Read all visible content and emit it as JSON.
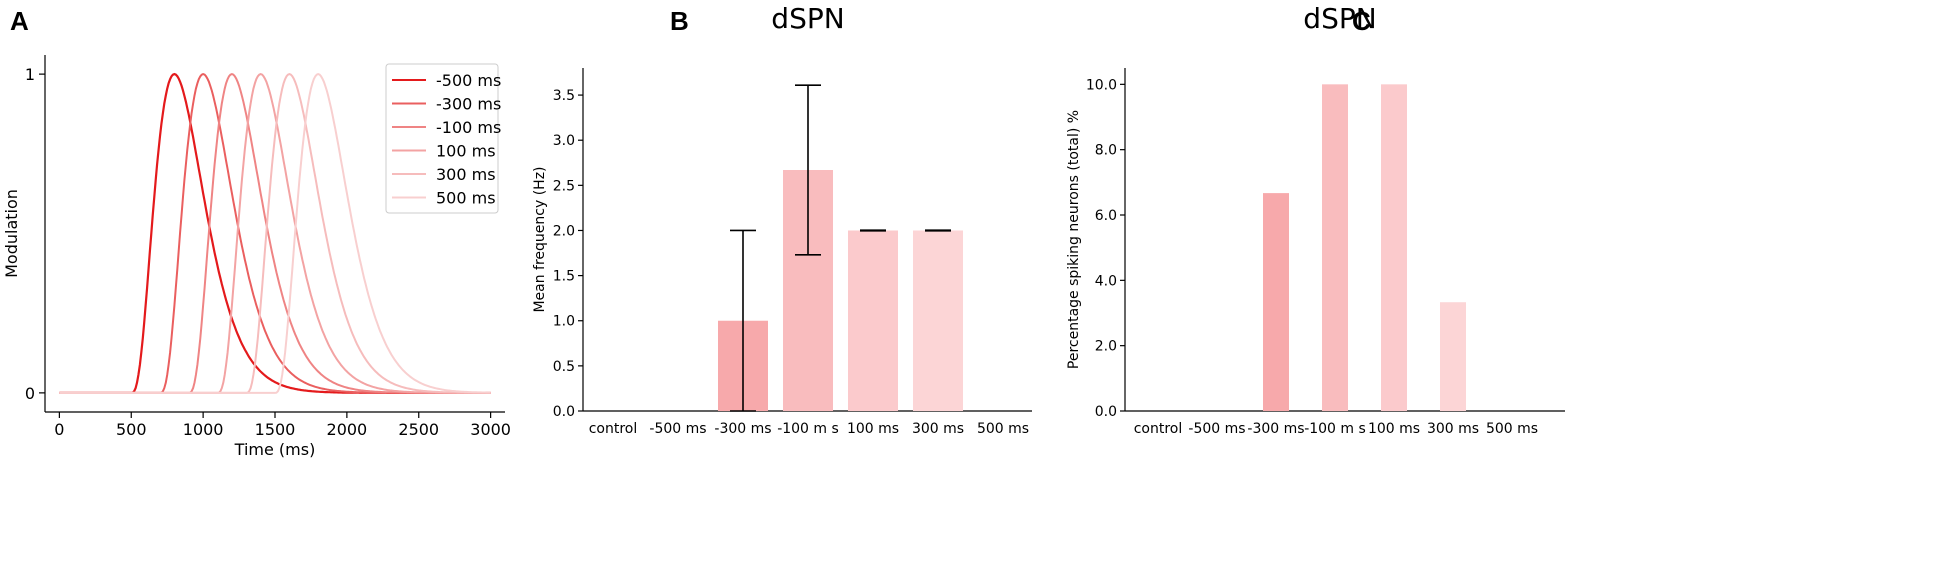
{
  "chart_data": [
    {
      "panel": "A",
      "type": "line",
      "title": "",
      "xlabel": "Time (ms)",
      "ylabel": "Modulation",
      "xlim": [
        -100,
        3100
      ],
      "ylim": [
        -0.06,
        1.06
      ],
      "xticks": [
        0,
        500,
        1000,
        1500,
        2000,
        2500,
        3000
      ],
      "xtick_labels": [
        "0",
        "500",
        "1000",
        "1500",
        "2000",
        "2500",
        "3000"
      ],
      "yticks": [
        0,
        1
      ],
      "ytick_labels": [
        "0",
        "1"
      ],
      "legend_position": "top-right",
      "grid": false,
      "series": [
        {
          "name": "-500 ms",
          "onset": 500,
          "peak_time": 800,
          "color": "#e41a1c"
        },
        {
          "name": "-300 ms",
          "onset": 700,
          "peak_time": 1000,
          "color": "#ea5f5f"
        },
        {
          "name": "-100 ms",
          "onset": 900,
          "peak_time": 1200,
          "color": "#ef8484"
        },
        {
          "name": "100 ms",
          "onset": 1100,
          "peak_time": 1400,
          "color": "#f3a3a3"
        },
        {
          "name": "300 ms",
          "onset": 1300,
          "peak_time": 1600,
          "color": "#f6bcbc"
        },
        {
          "name": "500 ms",
          "onset": 1500,
          "peak_time": 1800,
          "color": "#f8cfcf"
        }
      ]
    },
    {
      "panel": "B",
      "type": "bar",
      "title": "dSPN",
      "xlabel": "",
      "ylabel": "Mean frequency (Hz)",
      "ylim": [
        0,
        3.8
      ],
      "yticks": [
        0.0,
        0.5,
        1.0,
        1.5,
        2.0,
        2.5,
        3.0,
        3.5
      ],
      "ytick_labels": [
        "0.0",
        "0.5",
        "1.0",
        "1.5",
        "2.0",
        "2.5",
        "3.0",
        "3.5"
      ],
      "categories": [
        "control",
        "-500 ms",
        "-300 ms",
        "-100 m s",
        "100 ms",
        "300 ms",
        "500 ms"
      ],
      "values": [
        0,
        0,
        1.0,
        2.67,
        2.0,
        2.0,
        0
      ],
      "error": [
        null,
        null,
        1.0,
        0.94,
        0,
        0,
        null
      ],
      "colors": [
        "#f7a9ab",
        "#f7a9ab",
        "#f7a9ab",
        "#f9bcbe",
        "#fbcacc",
        "#fcd5d6",
        "#fcd5d6"
      ]
    },
    {
      "panel": "C",
      "type": "bar",
      "title": "dSPN",
      "xlabel": "",
      "ylabel": "Percentage spiking neurons (total) %",
      "ylim": [
        0,
        10.5
      ],
      "yticks": [
        0,
        2,
        4,
        6,
        8,
        10
      ],
      "ytick_labels": [
        "0.0",
        "2.0",
        "4.0",
        "6.0",
        "8.0",
        "10.0"
      ],
      "categories": [
        "control",
        "-500 ms",
        "-300 ms",
        "-100 m s",
        "100 ms",
        "300 ms",
        "500 ms"
      ],
      "values": [
        0,
        0,
        6.67,
        10.0,
        10.0,
        3.33,
        0
      ],
      "colors": [
        "#f7a9ab",
        "#f7a9ab",
        "#f7a9ab",
        "#f9bcbe",
        "#fbcacc",
        "#fcd5d6",
        "#fcd5d6"
      ]
    }
  ],
  "panel_letters": [
    "A",
    "B",
    "C"
  ]
}
